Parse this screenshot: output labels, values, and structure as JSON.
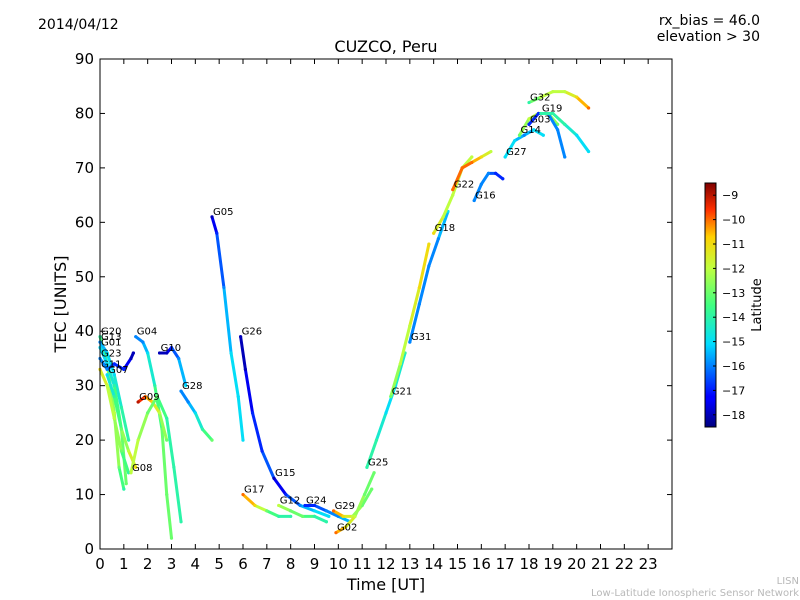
{
  "header": {
    "date": "2014/04/12",
    "rx_bias": "rx_bias = 46.0",
    "elevation": "elevation > 30"
  },
  "footer": {
    "org_short": "LISN",
    "org_long": "Low-Latitude Ionospheric Sensor Network"
  },
  "chart_data": {
    "type": "scatter",
    "title": "CUZCO, Peru",
    "xlabel": "Time [UT]",
    "ylabel": "TEC [UNITS]",
    "xlim": [
      0,
      24
    ],
    "ylim": [
      0,
      90
    ],
    "xticks": [
      0,
      1,
      2,
      3,
      4,
      5,
      6,
      7,
      8,
      9,
      10,
      11,
      12,
      13,
      14,
      15,
      16,
      17,
      18,
      19,
      20,
      21,
      22,
      23
    ],
    "yticks": [
      0,
      10,
      20,
      30,
      40,
      50,
      60,
      70,
      80,
      90
    ],
    "grid": false,
    "colorbar": {
      "label": "Latitude",
      "range": [
        -18.5,
        -8.5
      ],
      "ticks": [
        -9,
        -10,
        -11,
        -12,
        -13,
        -14,
        -15,
        -16,
        -17,
        -18
      ],
      "colormap": "jet"
    },
    "series": [
      {
        "name": "G20",
        "points": [
          [
            0,
            39,
            -14
          ],
          [
            0.3,
            34,
            -13
          ],
          [
            0.6,
            25,
            -12
          ],
          [
            0.8,
            15,
            -13
          ],
          [
            1.0,
            11,
            -14
          ]
        ]
      },
      {
        "name": "G13",
        "points": [
          [
            0,
            38,
            -16
          ],
          [
            0.3,
            36,
            -15
          ],
          [
            0.6,
            32,
            -15
          ],
          [
            0.9,
            26,
            -14
          ],
          [
            1.2,
            20,
            -14
          ]
        ]
      },
      {
        "name": "G01",
        "points": [
          [
            0,
            37,
            -15
          ],
          [
            0.3,
            34,
            -15
          ],
          [
            0.6,
            30,
            -14
          ],
          [
            0.9,
            22,
            -13
          ],
          [
            1.1,
            12,
            -13
          ]
        ]
      },
      {
        "name": "G23",
        "points": [
          [
            0,
            35,
            -16
          ],
          [
            0.3,
            33,
            -16
          ],
          [
            0.6,
            34,
            -17
          ],
          [
            1.0,
            33,
            -17
          ],
          [
            1.3,
            35,
            -18
          ],
          [
            1.4,
            36,
            -18
          ]
        ]
      },
      {
        "name": "G11",
        "points": [
          [
            0,
            33,
            -11
          ],
          [
            0.3,
            30,
            -12
          ],
          [
            0.6,
            24,
            -12
          ],
          [
            0.9,
            18,
            -13
          ],
          [
            1.2,
            14,
            -14
          ]
        ]
      },
      {
        "name": "G07",
        "points": [
          [
            0.3,
            32,
            -15
          ],
          [
            0.6,
            28,
            -14
          ],
          [
            0.9,
            22,
            -13
          ],
          [
            1.2,
            18,
            -12
          ],
          [
            1.5,
            15,
            -11
          ]
        ]
      },
      {
        "name": "G04",
        "points": [
          [
            1.5,
            39,
            -16
          ],
          [
            1.8,
            38,
            -16
          ],
          [
            2.0,
            36,
            -15
          ],
          [
            2.3,
            30,
            -14
          ],
          [
            2.6,
            22,
            -13
          ],
          [
            2.8,
            10,
            -13
          ],
          [
            3.0,
            2,
            -13
          ]
        ]
      },
      {
        "name": "G09",
        "points": [
          [
            1.6,
            27,
            -9
          ],
          [
            1.9,
            28,
            -10
          ],
          [
            2.2,
            27,
            -11
          ],
          [
            2.5,
            25,
            -12
          ],
          [
            2.8,
            20,
            -13
          ]
        ]
      },
      {
        "name": "G08",
        "points": [
          [
            1.3,
            14,
            -12
          ],
          [
            1.6,
            20,
            -12
          ],
          [
            2.0,
            25,
            -13
          ],
          [
            2.4,
            28,
            -13
          ],
          [
            2.8,
            24,
            -14
          ],
          [
            3.1,
            15,
            -14
          ],
          [
            3.4,
            5,
            -14
          ]
        ]
      },
      {
        "name": "G10",
        "points": [
          [
            2.5,
            36,
            -18
          ],
          [
            2.8,
            36,
            -18
          ],
          [
            3.0,
            37,
            -17
          ],
          [
            3.3,
            35,
            -16
          ],
          [
            3.6,
            30,
            -15
          ]
        ]
      },
      {
        "name": "G28",
        "points": [
          [
            3.4,
            29,
            -16
          ],
          [
            3.7,
            27,
            -16
          ],
          [
            4.0,
            25,
            -15
          ],
          [
            4.3,
            22,
            -14
          ],
          [
            4.7,
            20,
            -13
          ]
        ]
      },
      {
        "name": "G05",
        "points": [
          [
            4.7,
            61,
            -18
          ],
          [
            4.9,
            58,
            -17
          ],
          [
            5.2,
            48,
            -16
          ],
          [
            5.5,
            36,
            -15
          ],
          [
            5.8,
            28,
            -15
          ],
          [
            6.0,
            20,
            -15
          ]
        ]
      },
      {
        "name": "G26",
        "points": [
          [
            5.9,
            39,
            -18
          ],
          [
            6.1,
            33,
            -18
          ],
          [
            6.4,
            25,
            -17
          ],
          [
            6.8,
            18,
            -17
          ],
          [
            7.3,
            13,
            -16
          ]
        ]
      },
      {
        "name": "G15",
        "points": [
          [
            7.3,
            13,
            -18
          ],
          [
            7.8,
            10,
            -17
          ],
          [
            8.4,
            8,
            -16
          ],
          [
            9.0,
            7,
            -15
          ],
          [
            9.6,
            6,
            -15
          ]
        ]
      },
      {
        "name": "G17",
        "points": [
          [
            6.0,
            10,
            -10
          ],
          [
            6.5,
            8,
            -11
          ],
          [
            7.0,
            7,
            -13
          ],
          [
            7.5,
            6,
            -14
          ],
          [
            8.0,
            6,
            -14
          ]
        ]
      },
      {
        "name": "G12",
        "points": [
          [
            7.5,
            8,
            -12
          ],
          [
            8.0,
            7,
            -13
          ],
          [
            8.5,
            6,
            -13
          ],
          [
            9.0,
            6,
            -14
          ],
          [
            9.5,
            5,
            -14
          ]
        ]
      },
      {
        "name": "G24",
        "points": [
          [
            8.6,
            8,
            -17
          ],
          [
            9.0,
            8,
            -17
          ],
          [
            9.5,
            7,
            -16
          ],
          [
            10.0,
            6,
            -16
          ],
          [
            10.5,
            5,
            -15
          ]
        ]
      },
      {
        "name": "G29",
        "points": [
          [
            9.8,
            7,
            -10
          ],
          [
            10.2,
            6,
            -11
          ],
          [
            10.6,
            6,
            -12
          ],
          [
            11.0,
            8,
            -13
          ],
          [
            11.4,
            11,
            -13
          ]
        ]
      },
      {
        "name": "G02",
        "points": [
          [
            9.9,
            3,
            -10
          ],
          [
            10.3,
            4,
            -11
          ],
          [
            10.7,
            6,
            -12
          ],
          [
            11.1,
            10,
            -13
          ],
          [
            11.5,
            14,
            -13
          ]
        ]
      },
      {
        "name": "G25",
        "points": [
          [
            11.2,
            15,
            -14
          ],
          [
            11.6,
            20,
            -14
          ],
          [
            12.0,
            25,
            -15
          ],
          [
            12.4,
            30,
            -15
          ],
          [
            12.8,
            36,
            -14
          ]
        ]
      },
      {
        "name": "G21",
        "points": [
          [
            12.2,
            28,
            -13
          ],
          [
            12.6,
            34,
            -12
          ],
          [
            13.0,
            41,
            -12
          ],
          [
            13.4,
            48,
            -11
          ],
          [
            13.8,
            56,
            -11
          ]
        ]
      },
      {
        "name": "G31",
        "points": [
          [
            13.0,
            38,
            -16
          ],
          [
            13.4,
            45,
            -16
          ],
          [
            13.8,
            52,
            -16
          ],
          [
            14.2,
            57,
            -16
          ],
          [
            14.6,
            62,
            -15
          ]
        ]
      },
      {
        "name": "G18",
        "points": [
          [
            14.0,
            58,
            -11
          ],
          [
            14.4,
            61,
            -12
          ],
          [
            14.8,
            65,
            -12
          ],
          [
            15.2,
            70,
            -12
          ],
          [
            15.6,
            72,
            -12
          ]
        ]
      },
      {
        "name": "G22",
        "points": [
          [
            14.8,
            66,
            -10
          ],
          [
            15.2,
            70,
            -10
          ],
          [
            15.6,
            71,
            -10
          ],
          [
            16.0,
            72,
            -11
          ],
          [
            16.4,
            73,
            -12
          ]
        ]
      },
      {
        "name": "G16",
        "points": [
          [
            15.7,
            64,
            -16
          ],
          [
            16.0,
            67,
            -16
          ],
          [
            16.3,
            69,
            -16
          ],
          [
            16.6,
            69,
            -17
          ],
          [
            16.9,
            68,
            -17
          ]
        ]
      },
      {
        "name": "G27",
        "points": [
          [
            17.0,
            72,
            -15
          ],
          [
            17.4,
            75,
            -15
          ],
          [
            17.8,
            76,
            -16
          ],
          [
            18.2,
            77,
            -15
          ],
          [
            18.6,
            76,
            -15
          ]
        ]
      },
      {
        "name": "G14",
        "points": [
          [
            17.6,
            76,
            -13
          ],
          [
            18.0,
            79,
            -12
          ],
          [
            18.4,
            80,
            -12
          ],
          [
            18.8,
            80,
            -12
          ],
          [
            19.2,
            78,
            -13
          ]
        ]
      },
      {
        "name": "G03",
        "points": [
          [
            18.0,
            78,
            -17
          ],
          [
            18.4,
            80,
            -17
          ],
          [
            18.8,
            80,
            -16
          ],
          [
            19.2,
            77,
            -16
          ],
          [
            19.5,
            72,
            -16
          ]
        ]
      },
      {
        "name": "G19",
        "points": [
          [
            18.5,
            80,
            -14
          ],
          [
            19.0,
            80,
            -14
          ],
          [
            19.5,
            78,
            -14
          ],
          [
            20.0,
            76,
            -15
          ],
          [
            20.5,
            73,
            -15
          ]
        ]
      },
      {
        "name": "G32",
        "points": [
          [
            18.0,
            82,
            -14
          ],
          [
            18.5,
            83,
            -12
          ],
          [
            19.0,
            84,
            -12
          ],
          [
            19.5,
            84,
            -12
          ],
          [
            20.0,
            83,
            -11
          ],
          [
            20.5,
            81,
            -10
          ]
        ]
      }
    ]
  }
}
